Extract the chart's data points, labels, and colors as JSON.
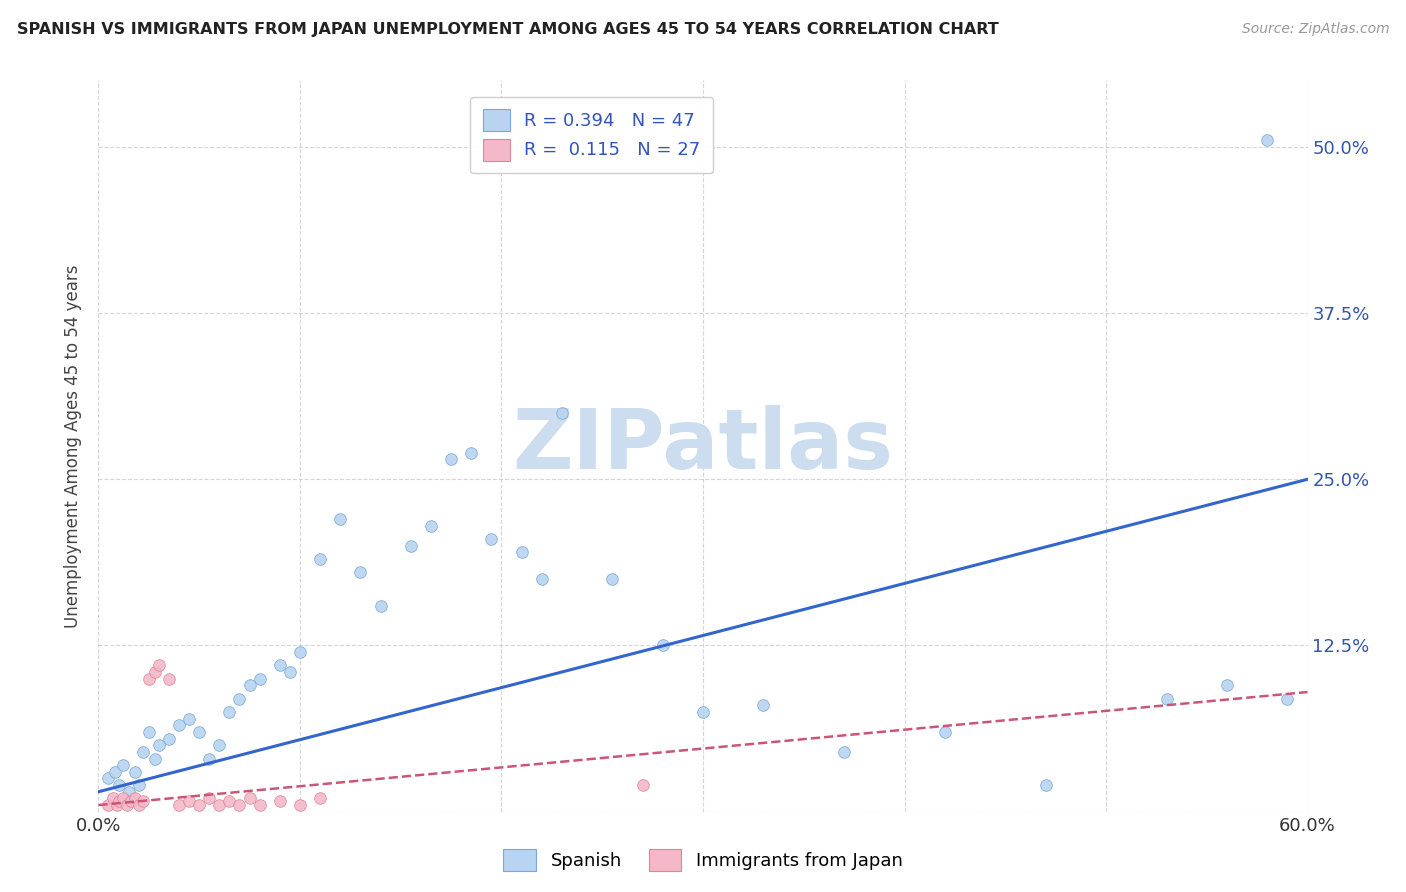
{
  "title": "SPANISH VS IMMIGRANTS FROM JAPAN UNEMPLOYMENT AMONG AGES 45 TO 54 YEARS CORRELATION CHART",
  "source": "Source: ZipAtlas.com",
  "ylabel": "Unemployment Among Ages 45 to 54 years",
  "x_min": 0.0,
  "x_max": 0.6,
  "y_min": 0.0,
  "y_max": 0.55,
  "x_ticks": [
    0.0,
    0.1,
    0.2,
    0.3,
    0.4,
    0.5,
    0.6
  ],
  "y_ticks": [
    0.0,
    0.125,
    0.25,
    0.375,
    0.5
  ],
  "legend_items": [
    {
      "label": "Spanish",
      "color": "#b8d4f0",
      "R": "0.394",
      "N": "47"
    },
    {
      "label": "Immigrants from Japan",
      "color": "#f5b8c8",
      "R": "0.115",
      "N": "27"
    }
  ],
  "blue_scatter_x": [
    0.005,
    0.008,
    0.01,
    0.012,
    0.015,
    0.018,
    0.02,
    0.022,
    0.025,
    0.028,
    0.03,
    0.035,
    0.04,
    0.045,
    0.05,
    0.055,
    0.06,
    0.065,
    0.07,
    0.075,
    0.08,
    0.09,
    0.095,
    0.1,
    0.11,
    0.12,
    0.13,
    0.14,
    0.155,
    0.165,
    0.175,
    0.185,
    0.195,
    0.21,
    0.22,
    0.23,
    0.255,
    0.28,
    0.3,
    0.33,
    0.37,
    0.42,
    0.47,
    0.53,
    0.56,
    0.58,
    0.59
  ],
  "blue_scatter_y": [
    0.025,
    0.03,
    0.02,
    0.035,
    0.015,
    0.03,
    0.02,
    0.045,
    0.06,
    0.04,
    0.05,
    0.055,
    0.065,
    0.07,
    0.06,
    0.04,
    0.05,
    0.075,
    0.085,
    0.095,
    0.1,
    0.11,
    0.105,
    0.12,
    0.19,
    0.22,
    0.18,
    0.155,
    0.2,
    0.215,
    0.265,
    0.27,
    0.205,
    0.195,
    0.175,
    0.3,
    0.175,
    0.125,
    0.075,
    0.08,
    0.045,
    0.06,
    0.02,
    0.085,
    0.095,
    0.505,
    0.085
  ],
  "pink_scatter_x": [
    0.005,
    0.007,
    0.009,
    0.01,
    0.012,
    0.014,
    0.016,
    0.018,
    0.02,
    0.022,
    0.025,
    0.028,
    0.03,
    0.035,
    0.04,
    0.045,
    0.05,
    0.055,
    0.06,
    0.065,
    0.07,
    0.075,
    0.08,
    0.09,
    0.1,
    0.11,
    0.27
  ],
  "pink_scatter_y": [
    0.005,
    0.01,
    0.005,
    0.008,
    0.01,
    0.005,
    0.008,
    0.01,
    0.005,
    0.008,
    0.1,
    0.105,
    0.11,
    0.1,
    0.005,
    0.008,
    0.005,
    0.01,
    0.005,
    0.008,
    0.005,
    0.01,
    0.005,
    0.008,
    0.005,
    0.01,
    0.02
  ],
  "blue_line_x": [
    0.0,
    0.6
  ],
  "blue_line_y": [
    0.015,
    0.25
  ],
  "pink_line_x": [
    0.0,
    0.6
  ],
  "pink_line_y": [
    0.005,
    0.09
  ],
  "background_color": "#ffffff",
  "grid_color": "#cccccc",
  "scatter_size": 70,
  "blue_color": "#b8d4f0",
  "blue_edge_color": "#7aa8d8",
  "pink_color": "#f5b8c8",
  "pink_edge_color": "#d88899",
  "blue_line_color": "#3366cc",
  "pink_line_color": "#cc5577",
  "watermark_text": "ZIPatlas",
  "watermark_color": "#ccddf0"
}
